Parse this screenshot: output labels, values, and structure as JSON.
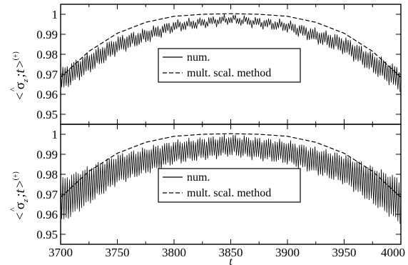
{
  "chart_data": [
    {
      "type": "line",
      "panel": "top",
      "ylabel_parts": {
        "open": "<",
        "sigma": "σ",
        "hat": "^",
        "sub": "z",
        "mid": ";t",
        "close": ">",
        "sup": "(+)"
      },
      "xlim": [
        3700,
        4000
      ],
      "ylim": [
        0.945,
        1.005
      ],
      "yticks": [
        0.95,
        0.96,
        0.97,
        0.98,
        0.99,
        1
      ],
      "ytick_labels": [
        "0.95",
        "0.96",
        "0.97",
        "0.98",
        "0.99",
        "1"
      ],
      "xticks": [
        3700,
        3750,
        3800,
        3850,
        3900,
        3950,
        4000
      ],
      "grid": false,
      "legend_position": "center",
      "series": [
        {
          "name": "num.",
          "style": "solid",
          "envelope": {
            "t": [
              3700,
              3750,
              3800,
              3850,
              3900,
              3950,
              4000
            ],
            "upper": [
              0.972,
              0.988,
              0.996,
              0.999,
              0.996,
              0.988,
              0.972
            ],
            "lower": [
              0.962,
              0.981,
              0.992,
              0.996,
              0.992,
              0.981,
              0.962
            ]
          }
        },
        {
          "name": "mult. scal. method",
          "style": "dashed",
          "x": [
            3700,
            3725,
            3750,
            3775,
            3800,
            3825,
            3850,
            3875,
            3900,
            3925,
            3950,
            3975,
            4000
          ],
          "y": [
            0.9685,
            0.9815,
            0.9905,
            0.996,
            0.999,
            1.0,
            1.0003,
            1.0,
            0.999,
            0.996,
            0.9905,
            0.9815,
            0.9685
          ]
        }
      ]
    },
    {
      "type": "line",
      "panel": "bottom",
      "ylabel_parts": {
        "open": "<",
        "sigma": "σ",
        "hat": "^",
        "sub": "z",
        "mid": ";t",
        "close": ">",
        "sup": "(+)"
      },
      "xlabel": "t",
      "xlim": [
        3700,
        4000
      ],
      "ylim": [
        0.945,
        1.005
      ],
      "yticks": [
        0.95,
        0.96,
        0.97,
        0.98,
        0.99,
        1
      ],
      "ytick_labels": [
        "0.95",
        "0.96",
        "0.97",
        "0.98",
        "0.99",
        "1"
      ],
      "xticks": [
        3700,
        3750,
        3800,
        3850,
        3900,
        3950,
        4000
      ],
      "xtick_labels": [
        "3700",
        "3750",
        "3800",
        "3850",
        "3900",
        "3950",
        "4000"
      ],
      "grid": false,
      "legend_position": "lower-center",
      "series": [
        {
          "name": "num.",
          "style": "solid",
          "envelope": {
            "t": [
              3700,
              3750,
              3800,
              3850,
              3900,
              3950,
              4000
            ],
            "upper": [
              0.977,
              0.989,
              0.996,
              0.999,
              0.996,
              0.989,
              0.977
            ],
            "lower": [
              0.956,
              0.976,
              0.986,
              0.99,
              0.986,
              0.976,
              0.956
            ]
          }
        },
        {
          "name": "mult. scal. method",
          "style": "dashed",
          "x": [
            3700,
            3725,
            3750,
            3775,
            3800,
            3825,
            3850,
            3875,
            3900,
            3925,
            3950,
            3975,
            4000
          ],
          "y": [
            0.9685,
            0.9815,
            0.9905,
            0.996,
            0.999,
            1.0,
            1.0003,
            1.0,
            0.999,
            0.996,
            0.9905,
            0.9815,
            0.9685
          ]
        }
      ]
    }
  ]
}
